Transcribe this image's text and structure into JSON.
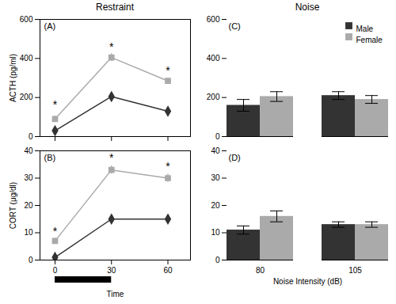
{
  "chart_data": [
    {
      "type": "line",
      "title": "Restraint",
      "ylabel": "ACTH (pg/ml)",
      "x": [
        0,
        30,
        60
      ],
      "xlim": [
        -8,
        72
      ],
      "xticks": [
        0,
        30,
        60
      ],
      "ylim": [
        0,
        600
      ],
      "yticks": [
        0,
        200,
        400,
        600
      ],
      "tick_labels": "y",
      "grid": false,
      "series": [
        {
          "color": "#333333",
          "marker": "diamond",
          "values": [
            30,
            205,
            130
          ],
          "errors": [
            5,
            15,
            10
          ]
        },
        {
          "color": "#aaaaaa",
          "marker": "square",
          "values": [
            90,
            405,
            285
          ],
          "errors": [
            15,
            20,
            15
          ]
        }
      ],
      "annotations": [
        {
          "text": "(A)"
        },
        {
          "text": "*",
          "x": 0,
          "y": 145
        },
        {
          "text": "*",
          "x": 30,
          "y": 440
        },
        {
          "text": "*",
          "x": 60,
          "y": 320
        }
      ]
    },
    {
      "type": "line",
      "xlabel": "Time",
      "ylabel": "CORT (μg/dl)",
      "x": [
        0,
        30,
        60
      ],
      "xlim": [
        -8,
        72
      ],
      "xticks": [
        0,
        30,
        60
      ],
      "ylim": [
        0,
        40
      ],
      "yticks": [
        0,
        10,
        20,
        30,
        40
      ],
      "grid": false,
      "series": [
        {
          "color": "#333333",
          "marker": "diamond",
          "values": [
            1,
            15,
            15
          ],
          "errors": [
            0.5,
            1,
            1
          ]
        },
        {
          "color": "#aaaaaa",
          "marker": "square",
          "values": [
            7,
            33,
            30
          ],
          "errors": [
            1,
            1.5,
            1.5
          ]
        }
      ],
      "annotations": [
        {
          "text": "(B)"
        },
        {
          "text": "*",
          "x": 0,
          "y": 9
        },
        {
          "text": "*",
          "x": 30,
          "y": 36
        },
        {
          "text": "*",
          "x": 60,
          "y": 33
        },
        {
          "type": "bar",
          "x": 0,
          "x2": 30,
          "color": "black"
        }
      ]
    },
    {
      "type": "bar",
      "title": "Noise",
      "categories": [
        "80",
        "105"
      ],
      "ylim": [
        0,
        600
      ],
      "yticks": [
        0,
        200,
        400,
        600
      ],
      "tick_labels": "y",
      "grid": false,
      "legend": "top-right",
      "series": [
        {
          "name": "Male",
          "color": "#333333",
          "values": [
            160,
            210
          ],
          "errors": [
            30,
            20
          ]
        },
        {
          "name": "Female",
          "color": "#aaaaaa",
          "values": [
            205,
            190
          ],
          "errors": [
            25,
            20
          ]
        }
      ],
      "annotations": [
        {
          "text": "(C)"
        }
      ]
    },
    {
      "type": "bar",
      "xlabel": "Noise Intensity (dB)",
      "categories": [
        "80",
        "105"
      ],
      "ylim": [
        0,
        40
      ],
      "yticks": [
        0,
        10,
        20,
        30,
        40
      ],
      "grid": false,
      "series": [
        {
          "color": "#333333",
          "values": [
            11,
            13
          ],
          "errors": [
            1.5,
            1.0
          ]
        },
        {
          "color": "#aaaaaa",
          "values": [
            16,
            13
          ],
          "errors": [
            2.0,
            1.0
          ]
        }
      ],
      "annotations": [
        {
          "text": "(D)"
        }
      ]
    }
  ]
}
